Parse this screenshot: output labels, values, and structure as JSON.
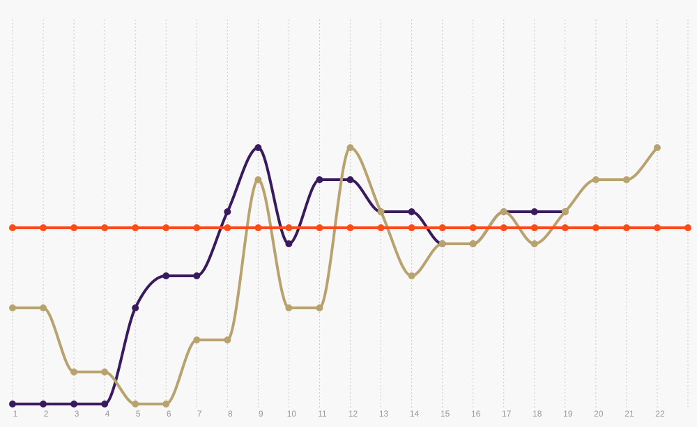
{
  "chart_data": {
    "type": "line",
    "title": "",
    "xlabel": "",
    "ylabel": "",
    "x": [
      1,
      2,
      3,
      4,
      5,
      6,
      7,
      8,
      9,
      10,
      11,
      12,
      13,
      14,
      15,
      16,
      17,
      18,
      19,
      20,
      21,
      22,
      23
    ],
    "x_tick_labels": [
      "1",
      "2",
      "3",
      "4",
      "5",
      "6",
      "7",
      "8",
      "9",
      "10",
      "11",
      "12",
      "13",
      "14",
      "15",
      "16",
      "17",
      "18",
      "19",
      "20",
      "21",
      "22",
      ""
    ],
    "ylim": [
      0,
      12
    ],
    "grid": "vertical, dotted",
    "y_axis_labels_shown": false,
    "series": [
      {
        "id": "purple",
        "color": "#3a1a5e",
        "smooth": true,
        "values": [
          0,
          0,
          0,
          0,
          3,
          4,
          4,
          6,
          8,
          5,
          7,
          7,
          6,
          6,
          5,
          5,
          6,
          6,
          6,
          null,
          null,
          null,
          null
        ]
      },
      {
        "id": "tan",
        "color": "#b8a26e",
        "smooth": true,
        "values": [
          3,
          3,
          1,
          1,
          0,
          0,
          2,
          2,
          7,
          3,
          3,
          8,
          6,
          4,
          5,
          5,
          6,
          5,
          6,
          7,
          7,
          8,
          null
        ]
      },
      {
        "id": "orange",
        "color": "#ff4a1c",
        "smooth": false,
        "values": [
          5.5,
          5.5,
          5.5,
          5.5,
          5.5,
          5.5,
          5.5,
          5.5,
          5.5,
          5.5,
          5.5,
          5.5,
          5.5,
          5.5,
          5.5,
          5.5,
          5.5,
          5.5,
          5.5,
          5.5,
          5.5,
          5.5,
          5.5
        ]
      }
    ]
  }
}
